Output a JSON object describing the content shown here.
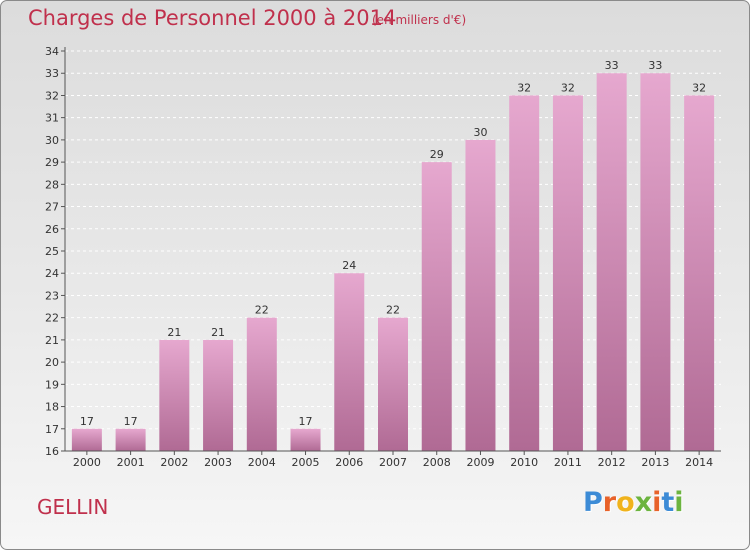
{
  "title": "Charges de Personnel 2000 à 2014",
  "subtitle": "(en milliers d'€)",
  "commune": "GELLIN",
  "logo": {
    "letters": [
      "P",
      "r",
      "o",
      "x",
      "i",
      "t",
      "i"
    ],
    "colors": [
      "#3c8bd6",
      "#e8622a",
      "#f0b31c",
      "#6cb43f",
      "#e8622a",
      "#3c8bd6",
      "#6cb43f"
    ]
  },
  "chart_data": {
    "type": "bar",
    "title": "Charges de Personnel 2000 à 2014",
    "categories": [
      "2000",
      "2001",
      "2002",
      "2003",
      "2004",
      "2005",
      "2006",
      "2007",
      "2008",
      "2009",
      "2010",
      "2011",
      "2012",
      "2013",
      "2014"
    ],
    "values": [
      17,
      17,
      21,
      21,
      22,
      17,
      24,
      22,
      29,
      30,
      32,
      32,
      33,
      33,
      32
    ],
    "data_labels": [
      "17",
      "17",
      "21",
      "21",
      "22",
      "17",
      "24",
      "22",
      "29",
      "30",
      "32",
      "32",
      "33",
      "33",
      "32"
    ],
    "ylim": [
      16,
      34
    ],
    "yticks": [
      16,
      17,
      18,
      19,
      20,
      21,
      22,
      23,
      24,
      25,
      26,
      27,
      28,
      29,
      30,
      31,
      32,
      33,
      34
    ],
    "grid": true,
    "bar_color_top": "#e6a8cf",
    "bar_color_bottom": "#b06a94"
  }
}
